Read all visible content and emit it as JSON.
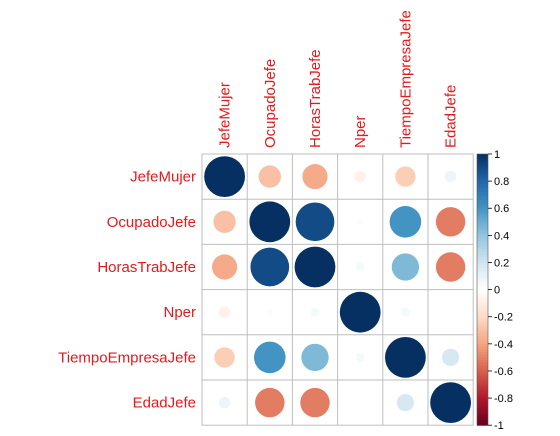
{
  "chart_data": {
    "type": "heatmap",
    "variables": [
      "JefeMujer",
      "OcupadoJefe",
      "HorasTrabJefe",
      "Nper",
      "TiempoEmpresaJefe",
      "EdadJefe"
    ],
    "matrix": [
      [
        1.0,
        -0.3,
        -0.38,
        -0.08,
        -0.25,
        0.08
      ],
      [
        -0.3,
        1.0,
        0.9,
        0.02,
        0.6,
        -0.52
      ],
      [
        -0.38,
        0.9,
        1.0,
        0.05,
        0.45,
        -0.52
      ],
      [
        -0.08,
        0.02,
        0.05,
        1.0,
        0.05,
        0.01
      ],
      [
        -0.25,
        0.6,
        0.45,
        0.05,
        1.0,
        0.18
      ],
      [
        0.08,
        -0.52,
        -0.52,
        0.01,
        0.18,
        1.0
      ]
    ],
    "colorbar": {
      "min": -1,
      "max": 1,
      "ticks": [
        "1",
        "0.8",
        "0.6",
        "0.4",
        "0.2",
        "0",
        "-0.2",
        "-0.4",
        "-0.6",
        "-0.8",
        "-1"
      ],
      "tick_values": [
        1,
        0.8,
        0.6,
        0.4,
        0.2,
        0,
        -0.2,
        -0.4,
        -0.6,
        -0.8,
        -1
      ]
    },
    "label_color": "#e41a1c",
    "grid_color": "#bebebe",
    "colors": {
      "neg": [
        "#67001f",
        "#b2182b",
        "#d6604d",
        "#f4a582",
        "#fddbc7"
      ],
      "mid": "#ffffff",
      "pos": [
        "#d1e5f0",
        "#92c5de",
        "#4393c3",
        "#2166ac",
        "#053061"
      ]
    }
  }
}
